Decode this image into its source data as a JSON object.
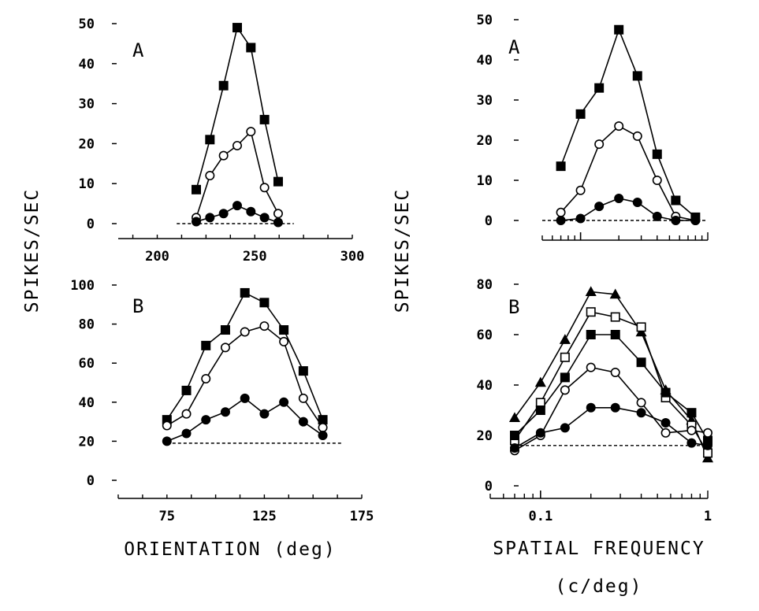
{
  "figure": {
    "ylabel_left": "SPIKES/SEC",
    "ylabel_right": "SPIKES/SEC",
    "xlabel_left": "ORIENTATION (deg)",
    "xlabel_right_line1": "SPATIAL FREQUENCY",
    "xlabel_right_line2": "(c/deg)"
  },
  "chart_data": [
    {
      "id": "orientation-A",
      "type": "line",
      "panel_label": "A",
      "xlim": [
        180,
        300
      ],
      "ylim": [
        0,
        50
      ],
      "xticks": [
        200,
        250,
        300
      ],
      "xtick_labels": [
        "200",
        "250",
        "300"
      ],
      "yticks": [
        0,
        10,
        20,
        30,
        40,
        50
      ],
      "ytick_labels": [
        "0",
        "10",
        "20",
        "30",
        "40",
        "50"
      ],
      "xscale": "linear",
      "baseline": {
        "value": 0,
        "from": 210,
        "to": 270
      },
      "series": [
        {
          "marker": "filled-square",
          "x": [
            220,
            227,
            234,
            241,
            248,
            255,
            262
          ],
          "y": [
            8.5,
            21,
            34.5,
            49,
            44,
            26,
            10.5
          ]
        },
        {
          "marker": "open-circle",
          "x": [
            220,
            227,
            234,
            241,
            248,
            255,
            262
          ],
          "y": [
            1.5,
            12,
            17,
            19.5,
            23,
            9,
            2.5
          ]
        },
        {
          "marker": "filled-circle",
          "x": [
            220,
            227,
            234,
            241,
            248,
            255,
            262
          ],
          "y": [
            0.5,
            1.5,
            2.5,
            4.5,
            3,
            1.5,
            0.3
          ]
        }
      ]
    },
    {
      "id": "orientation-B",
      "type": "line",
      "panel_label": "B",
      "xlim": [
        50,
        175
      ],
      "ylim": [
        0,
        100
      ],
      "xticks": [
        75,
        125,
        175
      ],
      "xtick_labels": [
        "75",
        "125",
        "175"
      ],
      "yticks": [
        0,
        20,
        40,
        60,
        80,
        100
      ],
      "ytick_labels": [
        "0",
        "20",
        "40",
        "60",
        "80",
        "100"
      ],
      "xscale": "linear",
      "baseline": {
        "value": 19,
        "from": 75,
        "to": 165
      },
      "series": [
        {
          "marker": "filled-square",
          "x": [
            75,
            85,
            95,
            105,
            115,
            125,
            135,
            145,
            155
          ],
          "y": [
            31,
            46,
            69,
            77,
            96,
            91,
            77,
            56,
            31
          ]
        },
        {
          "marker": "open-circle",
          "x": [
            75,
            85,
            95,
            105,
            115,
            125,
            135,
            145,
            155
          ],
          "y": [
            28,
            34,
            52,
            68,
            76,
            79,
            71,
            42,
            27
          ]
        },
        {
          "marker": "filled-circle",
          "x": [
            75,
            85,
            95,
            105,
            115,
            125,
            135,
            145,
            155
          ],
          "y": [
            20,
            24,
            31,
            35,
            42,
            34,
            40,
            30,
            23
          ]
        }
      ]
    },
    {
      "id": "spatial-frequency-A",
      "type": "line",
      "panel_label": "A",
      "xscale": "log",
      "xlim": [
        0.05,
        1.0
      ],
      "ylim": [
        0,
        50
      ],
      "xticks": [],
      "xtick_labels": [],
      "yticks": [
        0,
        10,
        20,
        30,
        40,
        50
      ],
      "ytick_labels": [
        "0",
        "10",
        "20",
        "30",
        "40",
        "50"
      ],
      "baseline": {
        "value": 0,
        "from": 0.05,
        "to": 1.0
      },
      "series": [
        {
          "marker": "filled-square",
          "x": [
            0.07,
            0.1,
            0.14,
            0.2,
            0.28,
            0.4,
            0.56,
            0.8
          ],
          "y": [
            13.5,
            26.5,
            33,
            47.5,
            36,
            16.5,
            5,
            0.8
          ]
        },
        {
          "marker": "open-circle",
          "x": [
            0.07,
            0.1,
            0.14,
            0.2,
            0.28,
            0.4,
            0.56,
            0.8
          ],
          "y": [
            2,
            7.5,
            19,
            23.5,
            21,
            10,
            1,
            0
          ]
        },
        {
          "marker": "filled-circle",
          "x": [
            0.07,
            0.1,
            0.14,
            0.2,
            0.28,
            0.4,
            0.56,
            0.8
          ],
          "y": [
            0,
            0.5,
            3.5,
            5.5,
            4.5,
            1,
            0,
            0
          ]
        }
      ]
    },
    {
      "id": "spatial-frequency-B",
      "type": "line",
      "panel_label": "B",
      "xscale": "log",
      "xlim": [
        0.05,
        1.0
      ],
      "ylim": [
        0,
        80
      ],
      "xticks": [
        0.1,
        1.0
      ],
      "xtick_labels": [
        "0.1",
        "1"
      ],
      "yticks": [
        0,
        20,
        40,
        60,
        80
      ],
      "ytick_labels": [
        "0",
        "20",
        "40",
        "60",
        "80"
      ],
      "baseline": {
        "value": 16,
        "from": 0.07,
        "to": 1.0
      },
      "series": [
        {
          "marker": "filled-triangle",
          "x": [
            0.07,
            0.1,
            0.14,
            0.2,
            0.28,
            0.4,
            0.56,
            0.8,
            1.0
          ],
          "y": [
            27,
            41,
            58,
            77,
            76,
            61,
            38,
            26,
            11
          ]
        },
        {
          "marker": "open-square",
          "x": [
            0.07,
            0.1,
            0.14,
            0.2,
            0.28,
            0.4,
            0.56,
            0.8,
            1.0
          ],
          "y": [
            18,
            33,
            51,
            69,
            67,
            63,
            35,
            24,
            13
          ]
        },
        {
          "marker": "filled-square",
          "x": [
            0.07,
            0.1,
            0.14,
            0.2,
            0.28,
            0.4,
            0.56,
            0.8,
            1.0
          ],
          "y": [
            20,
            30,
            43,
            60,
            60,
            49,
            37,
            29,
            18
          ]
        },
        {
          "marker": "open-circle",
          "x": [
            0.07,
            0.1,
            0.14,
            0.2,
            0.28,
            0.4,
            0.56,
            0.8,
            1.0
          ],
          "y": [
            14,
            20,
            38,
            47,
            45,
            33,
            21,
            22,
            21
          ]
        },
        {
          "marker": "filled-circle",
          "x": [
            0.07,
            0.1,
            0.14,
            0.2,
            0.28,
            0.4,
            0.56,
            0.8,
            1.0
          ],
          "y": [
            15,
            21,
            23,
            31,
            31,
            29,
            25,
            17,
            16
          ]
        }
      ]
    }
  ]
}
